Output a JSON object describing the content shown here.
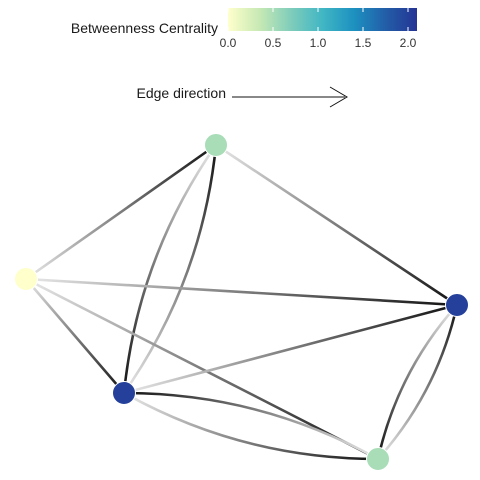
{
  "legend": {
    "color_title": "Betweenness Centrality",
    "color_ticks": [
      "0.0",
      "0.5",
      "1.0",
      "1.5",
      "2.0"
    ],
    "color_min": 0.0,
    "color_max": 2.1,
    "edge_title": "Edge direction",
    "colorscale": [
      "#FFFFCC",
      "#C7E9B4",
      "#7FCDBB",
      "#41B6C4",
      "#1D91C0",
      "#225EA8",
      "#253494"
    ]
  },
  "graph": {
    "nodes": [
      {
        "id": "A",
        "betweenness": 0.5
      },
      {
        "id": "B",
        "betweenness": 0.0
      },
      {
        "id": "C",
        "betweenness": 2.0
      },
      {
        "id": "D",
        "betweenness": 2.0
      },
      {
        "id": "E",
        "betweenness": 0.5
      }
    ],
    "edges": [
      {
        "from": "B",
        "to": "A"
      },
      {
        "from": "C",
        "to": "A"
      },
      {
        "from": "A",
        "to": "D"
      },
      {
        "from": "A",
        "to": "C"
      },
      {
        "from": "B",
        "to": "D"
      },
      {
        "from": "B",
        "to": "E"
      },
      {
        "from": "B",
        "to": "C"
      },
      {
        "from": "C",
        "to": "D"
      },
      {
        "from": "C",
        "to": "E"
      },
      {
        "from": "E",
        "to": "C"
      },
      {
        "from": "D",
        "to": "E"
      },
      {
        "from": "E",
        "to": "D"
      }
    ]
  }
}
